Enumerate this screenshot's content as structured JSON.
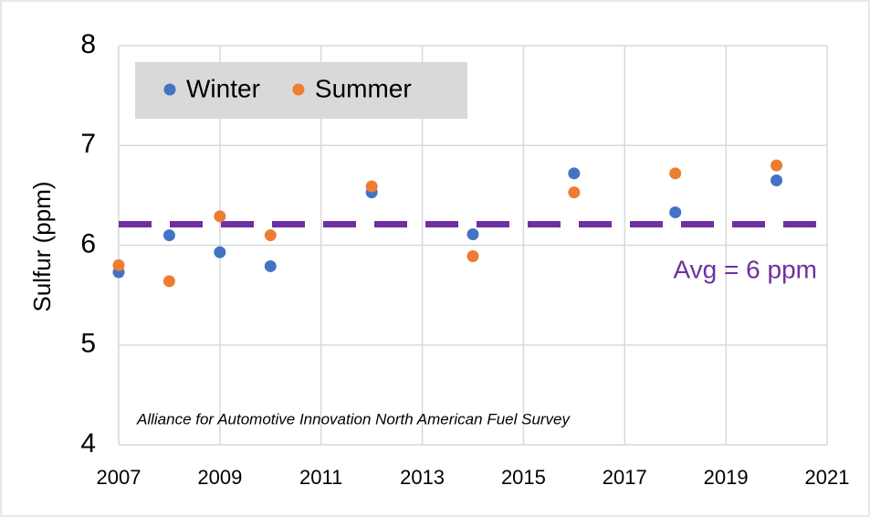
{
  "chart_data": {
    "type": "scatter",
    "y_label": "Sulfur (ppm)",
    "annotation": "Alliance for Automotive Innovation North American Fuel Survey",
    "xlim": [
      2007,
      2021
    ],
    "xticks": [
      2007,
      2009,
      2011,
      2013,
      2015,
      2017,
      2019,
      2021
    ],
    "ylim": [
      4,
      8
    ],
    "yticks": [
      4,
      5,
      6,
      7,
      8
    ],
    "grid": true,
    "legend": "upper left",
    "series": [
      {
        "name": "Winter",
        "color": "#4472c4",
        "x": [
          2007,
          2008,
          2009,
          2010,
          2012,
          2014,
          2016,
          2018,
          2020
        ],
        "values": [
          5.73,
          6.1,
          5.93,
          5.79,
          6.53,
          6.11,
          6.72,
          6.33,
          6.65
        ]
      },
      {
        "name": "Summer",
        "color": "#ed7d31",
        "x": [
          2007,
          2008,
          2009,
          2010,
          2012,
          2014,
          2016,
          2018,
          2020
        ],
        "values": [
          5.8,
          5.64,
          6.29,
          6.1,
          6.59,
          5.89,
          6.53,
          6.72,
          6.8
        ]
      }
    ],
    "avg_line": {
      "value": 6.21,
      "label": "Avg = 6 ppm",
      "color": "#7030a0"
    }
  }
}
